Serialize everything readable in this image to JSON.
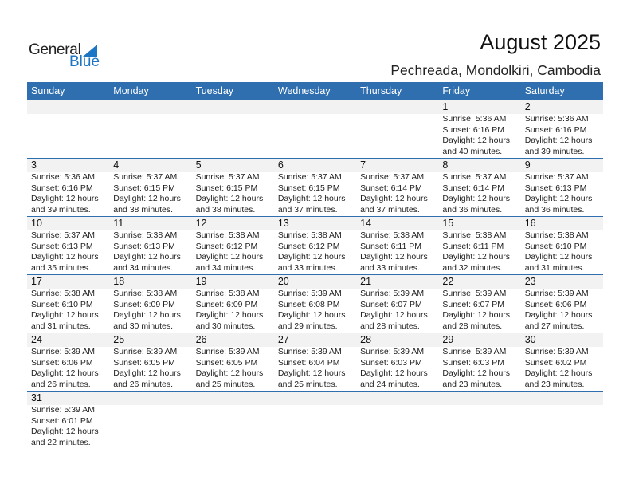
{
  "logo": {
    "text_general": "General",
    "text_blue": "Blue",
    "color": "#1d76c4"
  },
  "title": "August 2025",
  "subtitle": "Pechreada, Mondolkiri, Cambodia",
  "colors": {
    "header": "#2f6fb0",
    "band": "#f2f2f2"
  },
  "weekdays": [
    "Sunday",
    "Monday",
    "Tuesday",
    "Wednesday",
    "Thursday",
    "Friday",
    "Saturday"
  ],
  "weeks": [
    [
      null,
      null,
      null,
      null,
      null,
      {
        "day": "1",
        "sunrise": "Sunrise: 5:36 AM",
        "sunset": "Sunset: 6:16 PM",
        "daylight1": "Daylight: 12 hours",
        "daylight2": "and 40 minutes."
      },
      {
        "day": "2",
        "sunrise": "Sunrise: 5:36 AM",
        "sunset": "Sunset: 6:16 PM",
        "daylight1": "Daylight: 12 hours",
        "daylight2": "and 39 minutes."
      }
    ],
    [
      {
        "day": "3",
        "sunrise": "Sunrise: 5:36 AM",
        "sunset": "Sunset: 6:16 PM",
        "daylight1": "Daylight: 12 hours",
        "daylight2": "and 39 minutes."
      },
      {
        "day": "4",
        "sunrise": "Sunrise: 5:37 AM",
        "sunset": "Sunset: 6:15 PM",
        "daylight1": "Daylight: 12 hours",
        "daylight2": "and 38 minutes."
      },
      {
        "day": "5",
        "sunrise": "Sunrise: 5:37 AM",
        "sunset": "Sunset: 6:15 PM",
        "daylight1": "Daylight: 12 hours",
        "daylight2": "and 38 minutes."
      },
      {
        "day": "6",
        "sunrise": "Sunrise: 5:37 AM",
        "sunset": "Sunset: 6:15 PM",
        "daylight1": "Daylight: 12 hours",
        "daylight2": "and 37 minutes."
      },
      {
        "day": "7",
        "sunrise": "Sunrise: 5:37 AM",
        "sunset": "Sunset: 6:14 PM",
        "daylight1": "Daylight: 12 hours",
        "daylight2": "and 37 minutes."
      },
      {
        "day": "8",
        "sunrise": "Sunrise: 5:37 AM",
        "sunset": "Sunset: 6:14 PM",
        "daylight1": "Daylight: 12 hours",
        "daylight2": "and 36 minutes."
      },
      {
        "day": "9",
        "sunrise": "Sunrise: 5:37 AM",
        "sunset": "Sunset: 6:13 PM",
        "daylight1": "Daylight: 12 hours",
        "daylight2": "and 36 minutes."
      }
    ],
    [
      {
        "day": "10",
        "sunrise": "Sunrise: 5:37 AM",
        "sunset": "Sunset: 6:13 PM",
        "daylight1": "Daylight: 12 hours",
        "daylight2": "and 35 minutes."
      },
      {
        "day": "11",
        "sunrise": "Sunrise: 5:38 AM",
        "sunset": "Sunset: 6:13 PM",
        "daylight1": "Daylight: 12 hours",
        "daylight2": "and 34 minutes."
      },
      {
        "day": "12",
        "sunrise": "Sunrise: 5:38 AM",
        "sunset": "Sunset: 6:12 PM",
        "daylight1": "Daylight: 12 hours",
        "daylight2": "and 34 minutes."
      },
      {
        "day": "13",
        "sunrise": "Sunrise: 5:38 AM",
        "sunset": "Sunset: 6:12 PM",
        "daylight1": "Daylight: 12 hours",
        "daylight2": "and 33 minutes."
      },
      {
        "day": "14",
        "sunrise": "Sunrise: 5:38 AM",
        "sunset": "Sunset: 6:11 PM",
        "daylight1": "Daylight: 12 hours",
        "daylight2": "and 33 minutes."
      },
      {
        "day": "15",
        "sunrise": "Sunrise: 5:38 AM",
        "sunset": "Sunset: 6:11 PM",
        "daylight1": "Daylight: 12 hours",
        "daylight2": "and 32 minutes."
      },
      {
        "day": "16",
        "sunrise": "Sunrise: 5:38 AM",
        "sunset": "Sunset: 6:10 PM",
        "daylight1": "Daylight: 12 hours",
        "daylight2": "and 31 minutes."
      }
    ],
    [
      {
        "day": "17",
        "sunrise": "Sunrise: 5:38 AM",
        "sunset": "Sunset: 6:10 PM",
        "daylight1": "Daylight: 12 hours",
        "daylight2": "and 31 minutes."
      },
      {
        "day": "18",
        "sunrise": "Sunrise: 5:38 AM",
        "sunset": "Sunset: 6:09 PM",
        "daylight1": "Daylight: 12 hours",
        "daylight2": "and 30 minutes."
      },
      {
        "day": "19",
        "sunrise": "Sunrise: 5:38 AM",
        "sunset": "Sunset: 6:09 PM",
        "daylight1": "Daylight: 12 hours",
        "daylight2": "and 30 minutes."
      },
      {
        "day": "20",
        "sunrise": "Sunrise: 5:39 AM",
        "sunset": "Sunset: 6:08 PM",
        "daylight1": "Daylight: 12 hours",
        "daylight2": "and 29 minutes."
      },
      {
        "day": "21",
        "sunrise": "Sunrise: 5:39 AM",
        "sunset": "Sunset: 6:07 PM",
        "daylight1": "Daylight: 12 hours",
        "daylight2": "and 28 minutes."
      },
      {
        "day": "22",
        "sunrise": "Sunrise: 5:39 AM",
        "sunset": "Sunset: 6:07 PM",
        "daylight1": "Daylight: 12 hours",
        "daylight2": "and 28 minutes."
      },
      {
        "day": "23",
        "sunrise": "Sunrise: 5:39 AM",
        "sunset": "Sunset: 6:06 PM",
        "daylight1": "Daylight: 12 hours",
        "daylight2": "and 27 minutes."
      }
    ],
    [
      {
        "day": "24",
        "sunrise": "Sunrise: 5:39 AM",
        "sunset": "Sunset: 6:06 PM",
        "daylight1": "Daylight: 12 hours",
        "daylight2": "and 26 minutes."
      },
      {
        "day": "25",
        "sunrise": "Sunrise: 5:39 AM",
        "sunset": "Sunset: 6:05 PM",
        "daylight1": "Daylight: 12 hours",
        "daylight2": "and 26 minutes."
      },
      {
        "day": "26",
        "sunrise": "Sunrise: 5:39 AM",
        "sunset": "Sunset: 6:05 PM",
        "daylight1": "Daylight: 12 hours",
        "daylight2": "and 25 minutes."
      },
      {
        "day": "27",
        "sunrise": "Sunrise: 5:39 AM",
        "sunset": "Sunset: 6:04 PM",
        "daylight1": "Daylight: 12 hours",
        "daylight2": "and 25 minutes."
      },
      {
        "day": "28",
        "sunrise": "Sunrise: 5:39 AM",
        "sunset": "Sunset: 6:03 PM",
        "daylight1": "Daylight: 12 hours",
        "daylight2": "and 24 minutes."
      },
      {
        "day": "29",
        "sunrise": "Sunrise: 5:39 AM",
        "sunset": "Sunset: 6:03 PM",
        "daylight1": "Daylight: 12 hours",
        "daylight2": "and 23 minutes."
      },
      {
        "day": "30",
        "sunrise": "Sunrise: 5:39 AM",
        "sunset": "Sunset: 6:02 PM",
        "daylight1": "Daylight: 12 hours",
        "daylight2": "and 23 minutes."
      }
    ],
    [
      {
        "day": "31",
        "sunrise": "Sunrise: 5:39 AM",
        "sunset": "Sunset: 6:01 PM",
        "daylight1": "Daylight: 12 hours",
        "daylight2": "and 22 minutes."
      },
      null,
      null,
      null,
      null,
      null,
      null
    ]
  ]
}
